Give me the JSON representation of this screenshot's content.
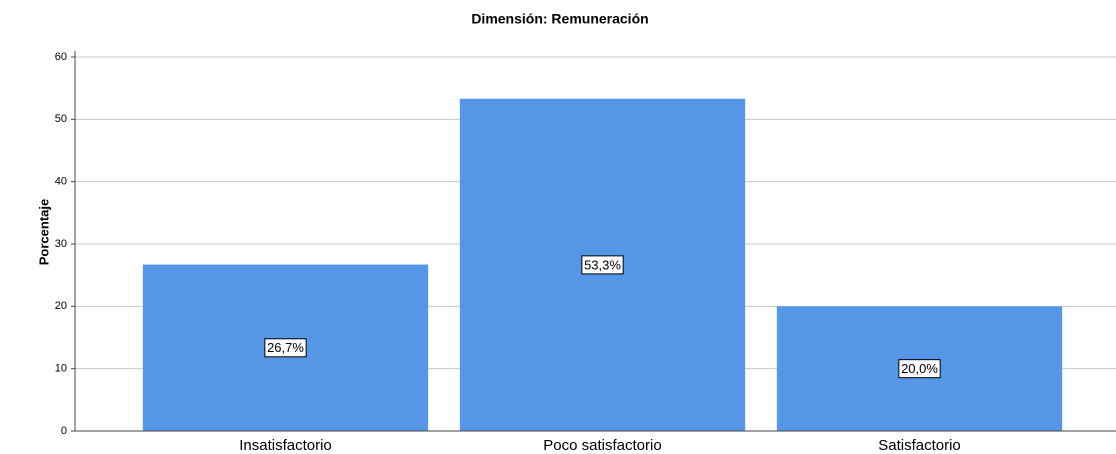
{
  "chart_data": {
    "type": "bar",
    "title": "Dimensión: Remuneración",
    "y_label": "Porcentaje",
    "categories": [
      "Insatisfactorio",
      "Poco satisfactorio",
      "Satisfactorio"
    ],
    "values": [
      26.7,
      53.3,
      20.0
    ],
    "value_labels": [
      "26,7%",
      "53,3%",
      "20,0%"
    ],
    "color": "#5596e6",
    "ylim": [
      0,
      60
    ],
    "yticks": [
      0,
      10,
      20,
      30,
      40,
      50,
      60
    ],
    "grid": true
  }
}
